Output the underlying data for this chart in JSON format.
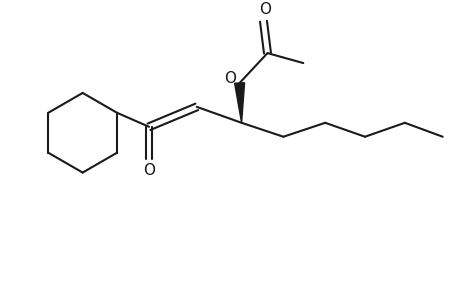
{
  "bg_color": "#ffffff",
  "line_color": "#1a1a1a",
  "line_width": 1.5,
  "figsize": [
    4.6,
    3.0
  ],
  "dpi": 100,
  "xlim": [
    0,
    460
  ],
  "ylim": [
    0,
    300
  ]
}
